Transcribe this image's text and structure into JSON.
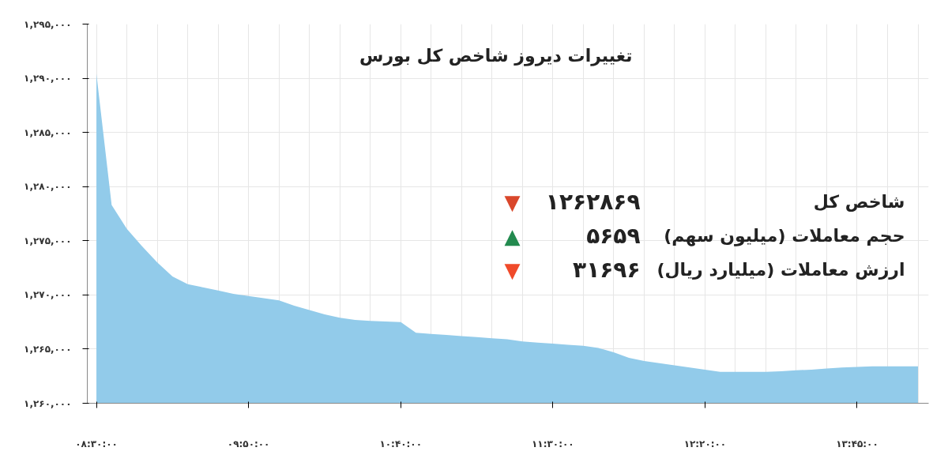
{
  "chart_data": {
    "type": "area",
    "title": "تغییرات دیروز شاخص کل بورس",
    "categories": [
      "۰۸:۳۰:۰۰",
      null,
      null,
      null,
      null,
      null,
      null,
      null,
      null,
      null,
      "۰۹:۵۰:۰۰",
      null,
      null,
      null,
      null,
      null,
      null,
      null,
      null,
      null,
      "۱۰:۴۰:۰۰",
      null,
      null,
      null,
      null,
      null,
      null,
      null,
      null,
      null,
      "۱۱:۳۰:۰۰",
      null,
      null,
      null,
      null,
      null,
      null,
      null,
      null,
      null,
      "۱۲:۲۰:۰۰",
      null,
      null,
      null,
      null,
      null,
      null,
      null,
      null,
      null,
      "۱۳:۴۵:۰۰",
      null,
      null,
      null,
      null
    ],
    "series": [
      {
        "color": "#92cbea",
        "values": [
          1290400,
          1278300,
          1276100,
          1274500,
          1273000,
          1271700,
          1271000,
          1270700,
          1270400,
          1270100,
          1269900,
          1269700,
          1269500,
          1269000,
          1268600,
          1268200,
          1267900,
          1267700,
          1267600,
          1267550,
          1267500,
          1266500,
          1266400,
          1266300,
          1266200,
          1266100,
          1266000,
          1265900,
          1265700,
          1265600,
          1265500,
          1265400,
          1265300,
          1265100,
          1264700,
          1264200,
          1263900,
          1263700,
          1263500,
          1263300,
          1263100,
          1262900,
          1262900,
          1262900,
          1262900,
          1262950,
          1263050,
          1263100,
          1263200,
          1263300,
          1263350,
          1263400,
          1263400,
          1263400,
          1263400
        ]
      }
    ],
    "ylim": [
      1260000,
      1295000
    ],
    "yticks": [
      {
        "value": 1260000,
        "label": "۱,۲۶۰,۰۰۰"
      },
      {
        "value": 1265000,
        "label": "۱,۲۶۵,۰۰۰"
      },
      {
        "value": 1270000,
        "label": "۱,۲۷۰,۰۰۰"
      },
      {
        "value": 1275000,
        "label": "۱,۲۷۵,۰۰۰"
      },
      {
        "value": 1280000,
        "label": "۱,۲۸۰,۰۰۰"
      },
      {
        "value": 1285000,
        "label": "۱,۲۸۵,۰۰۰"
      },
      {
        "value": 1290000,
        "label": "۱,۲۹۰,۰۰۰"
      },
      {
        "value": 1295000,
        "label": "۱,۲۹۵,۰۰۰"
      }
    ],
    "grid": true,
    "annotations": [
      "شاخص کل",
      "۱۲۶۲۸۶۹",
      "▼",
      "حجم معاملات (میلیون سهم)",
      "۵۶۵۹",
      "▲",
      "ارزش معاملات (میلیارد ریال)",
      "۳۱۶۹۶",
      "▼"
    ]
  }
}
